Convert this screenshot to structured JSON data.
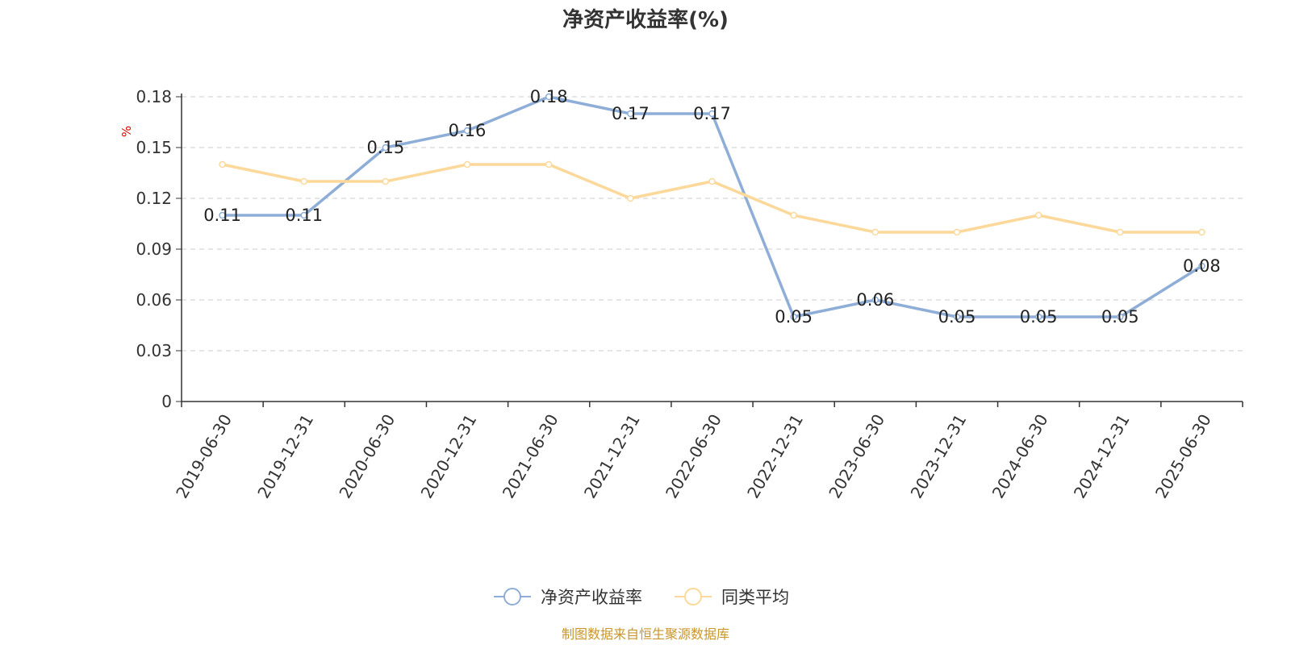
{
  "chart_data": {
    "type": "line",
    "title": "净资产收益率(%)",
    "ylabel": "%",
    "xlabel": "",
    "categories": [
      "2019-06-30",
      "2019-12-31",
      "2020-06-30",
      "2020-12-31",
      "2021-06-30",
      "2021-12-31",
      "2022-06-30",
      "2022-12-31",
      "2023-06-30",
      "2023-12-31",
      "2024-06-30",
      "2024-12-31",
      "2025-06-30"
    ],
    "ylim": [
      0,
      0.18
    ],
    "yticks": [
      "0",
      "0.03",
      "0.06",
      "0.09",
      "0.12",
      "0.15",
      "0.18"
    ],
    "ytick_values": [
      0,
      0.03,
      0.06,
      0.09,
      0.12,
      0.15,
      0.18
    ],
    "grid": "horizontal dashed",
    "legend_position": "bottom-center",
    "series": [
      {
        "name": "净资产收益率",
        "color": "#8eaed8",
        "values": [
          0.11,
          0.11,
          0.15,
          0.16,
          0.18,
          0.17,
          0.17,
          0.05,
          0.06,
          0.05,
          0.05,
          0.05,
          0.08
        ],
        "labels": [
          "0.11",
          "0.11",
          "0.15",
          "0.16",
          "0.18",
          "0.17",
          "0.17",
          "0.05",
          "0.06",
          "0.05",
          "0.05",
          "0.05",
          "0.08"
        ]
      },
      {
        "name": "同类平均",
        "color": "#fcd99a",
        "values": [
          0.14,
          0.13,
          0.13,
          0.14,
          0.14,
          0.12,
          0.13,
          0.11,
          0.1,
          0.1,
          0.11,
          0.1,
          0.1
        ]
      }
    ],
    "source": "制图数据来自恒生聚源数据库"
  }
}
